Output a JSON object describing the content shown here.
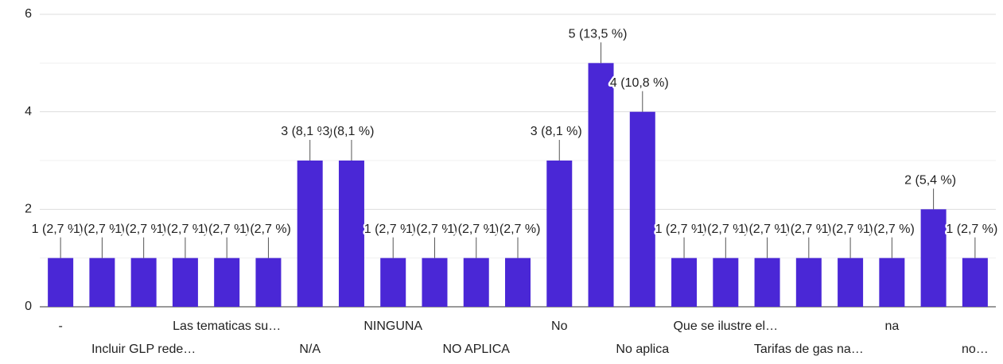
{
  "chart_data": {
    "type": "bar",
    "categories": [
      "-",
      null,
      "Incluir GLP rede…",
      null,
      "Las tematicas su…",
      null,
      "N/A",
      null,
      "NINGUNA",
      null,
      "NO APLICA",
      null,
      "No",
      null,
      "No aplica",
      null,
      "Que se ilustre el…",
      null,
      "Tarifas de gas na…",
      null,
      "na",
      null,
      "no…"
    ],
    "values": [
      1,
      1,
      1,
      1,
      1,
      1,
      3,
      3,
      1,
      1,
      1,
      1,
      3,
      5,
      4,
      1,
      1,
      1,
      1,
      1,
      1,
      2,
      1
    ],
    "value_labels": [
      "1 (2,7 %)",
      "1 (2,7 %)",
      "1 (2,7 %)",
      "1 (2,7 %)",
      "1 (2,7 %)",
      "1 (2,7 %)",
      "3 (8,1 %)",
      "3 (8,1 %)",
      "1 (2,7 %)",
      "1 (2,7 %)",
      "1 (2,7 %)",
      "1 (2,7 %)",
      "3 (8,1 %)",
      "5 (13,5 %)",
      "4 (10,8 %)",
      "1 (2,7 %)",
      "1 (2,7 %)",
      "1 (2,7 %)",
      "1 (2,7 %)",
      "1 (2,7 %)",
      "1 (2,7 %)",
      "2 (5,4 %)",
      "1 (2,7 %)"
    ],
    "color": "#4a27d6",
    "ylim": [
      0,
      6
    ],
    "yticks": [
      0,
      2,
      4,
      6
    ],
    "minor_yticks": [
      1,
      3,
      5
    ],
    "grid": true
  }
}
